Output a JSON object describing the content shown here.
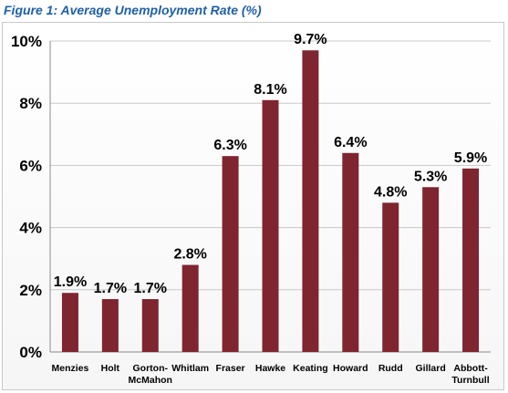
{
  "title": "Figure 1: Average Unemployment Rate (%)",
  "colors": {
    "bar": "#7e2530",
    "title": "#1f5fa8",
    "grid": "#c9c9c9"
  },
  "chart_data": {
    "type": "bar",
    "title": "",
    "xlabel": "",
    "ylabel": "",
    "categories": [
      "Menzies",
      "Holt",
      "Gorton-McMahon",
      "Whitlam",
      "Fraser",
      "Hawke",
      "Keating",
      "Howard",
      "Rudd",
      "Gillard",
      "Abbott-Turnbull"
    ],
    "category_display": [
      [
        "Menzies"
      ],
      [
        "Holt"
      ],
      [
        "Gorton-",
        "McMahon"
      ],
      [
        "Whitlam"
      ],
      [
        "Fraser"
      ],
      [
        "Hawke"
      ],
      [
        "Keating"
      ],
      [
        "Howard"
      ],
      [
        "Rudd"
      ],
      [
        "Gillard"
      ],
      [
        "Abbott-",
        "Turnbull"
      ]
    ],
    "values": [
      1.9,
      1.7,
      1.7,
      2.8,
      6.3,
      8.1,
      9.7,
      6.4,
      4.8,
      5.3,
      5.9
    ],
    "data_labels": [
      "1.9%",
      "1.7%",
      "1.7%",
      "2.8%",
      "6.3%",
      "8.1%",
      "9.7%",
      "6.4%",
      "4.8%",
      "5.3%",
      "5.9%"
    ],
    "ylim": [
      0,
      10
    ],
    "yticks": [
      0,
      2,
      4,
      6,
      8,
      10
    ],
    "ytick_labels": [
      "0%",
      "2%",
      "4%",
      "6%",
      "8%",
      "10%"
    ],
    "grid": true,
    "legend": "none"
  }
}
